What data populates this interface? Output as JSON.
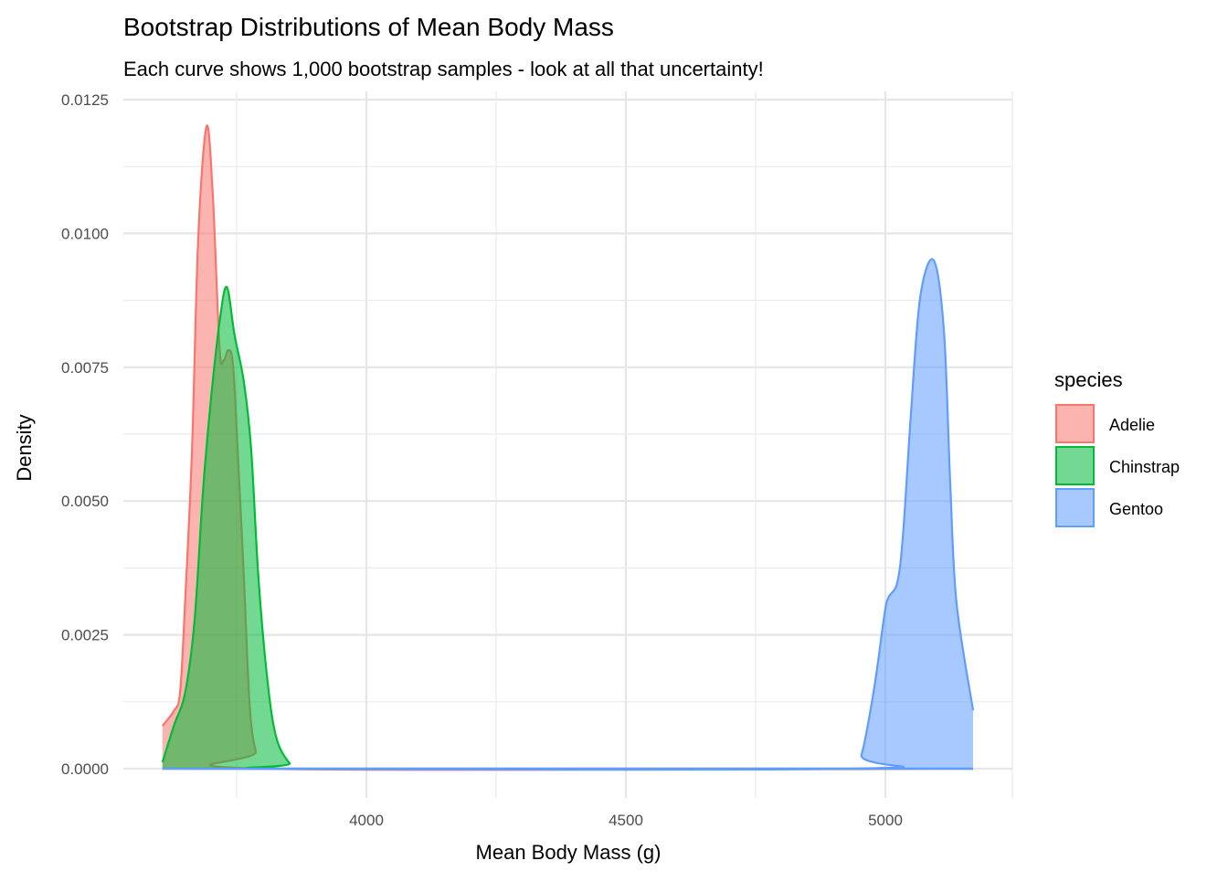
{
  "chart_data": {
    "type": "area",
    "title": "Bootstrap Distributions of Mean Body Mass",
    "subtitle": "Each curve shows 1,000 bootstrap samples - look at all that uncertainty!",
    "xlabel": "Mean Body Mass (g)",
    "ylabel": "Density",
    "xlim": [
      3532,
      5246
    ],
    "ylim": [
      -0.00055,
      0.0125
    ],
    "x_ticks": [
      4000,
      4500,
      5000
    ],
    "x_tick_labels": [
      "4000",
      "4500",
      "5000"
    ],
    "x_minor": [
      3750,
      4250,
      4750,
      5250
    ],
    "y_ticks": [
      0,
      0.0025,
      0.005,
      0.0075,
      0.01,
      0.0125
    ],
    "y_tick_labels": [
      "0.0000",
      "0.0025",
      "0.0050",
      "0.0075",
      "0.0100",
      "0.0125"
    ],
    "grid": true,
    "legend": {
      "title": "species",
      "placement": "right"
    },
    "series": [
      {
        "name": "Adelie",
        "color": "#F8766D",
        "x": [
          3607,
          3629,
          3641,
          3651,
          3664,
          3676,
          3692,
          3704,
          3717,
          3725,
          3734,
          3743,
          3752,
          3764,
          3775,
          3787,
          3805,
          5169
        ],
        "y": [
          0.0008,
          0.00108,
          0.00143,
          0.00318,
          0.00596,
          0.00992,
          0.012,
          0.01073,
          0.00787,
          0.00763,
          0.00782,
          0.00755,
          0.00596,
          0.00357,
          0.0012,
          0.00032,
          0,
          0
        ]
      },
      {
        "name": "Chinstrap",
        "color": "#00BA38",
        "x": [
          3607,
          3629,
          3651,
          3669,
          3685,
          3699,
          3717,
          3731,
          3746,
          3764,
          3778,
          3792,
          3810,
          3827,
          3852,
          3870,
          5169
        ],
        "y": [
          0.00012,
          0.0008,
          0.00143,
          0.00278,
          0.00516,
          0.00675,
          0.00834,
          0.009,
          0.0081,
          0.00722,
          0.00596,
          0.00357,
          0.00159,
          0.00056,
          0.0001,
          0,
          0
        ]
      },
      {
        "name": "Gentoo",
        "color": "#619CFF",
        "x": [
          3607,
          4931,
          4954,
          4979,
          4997,
          5005,
          5023,
          5034,
          5049,
          5067,
          5093,
          5113,
          5125,
          5137,
          5169
        ],
        "y": [
          0,
          0,
          0.00026,
          0.00154,
          0.0028,
          0.00318,
          0.00348,
          0.00437,
          0.00659,
          0.0088,
          0.0095,
          0.00816,
          0.00533,
          0.00311,
          0.00109
        ]
      }
    ]
  }
}
